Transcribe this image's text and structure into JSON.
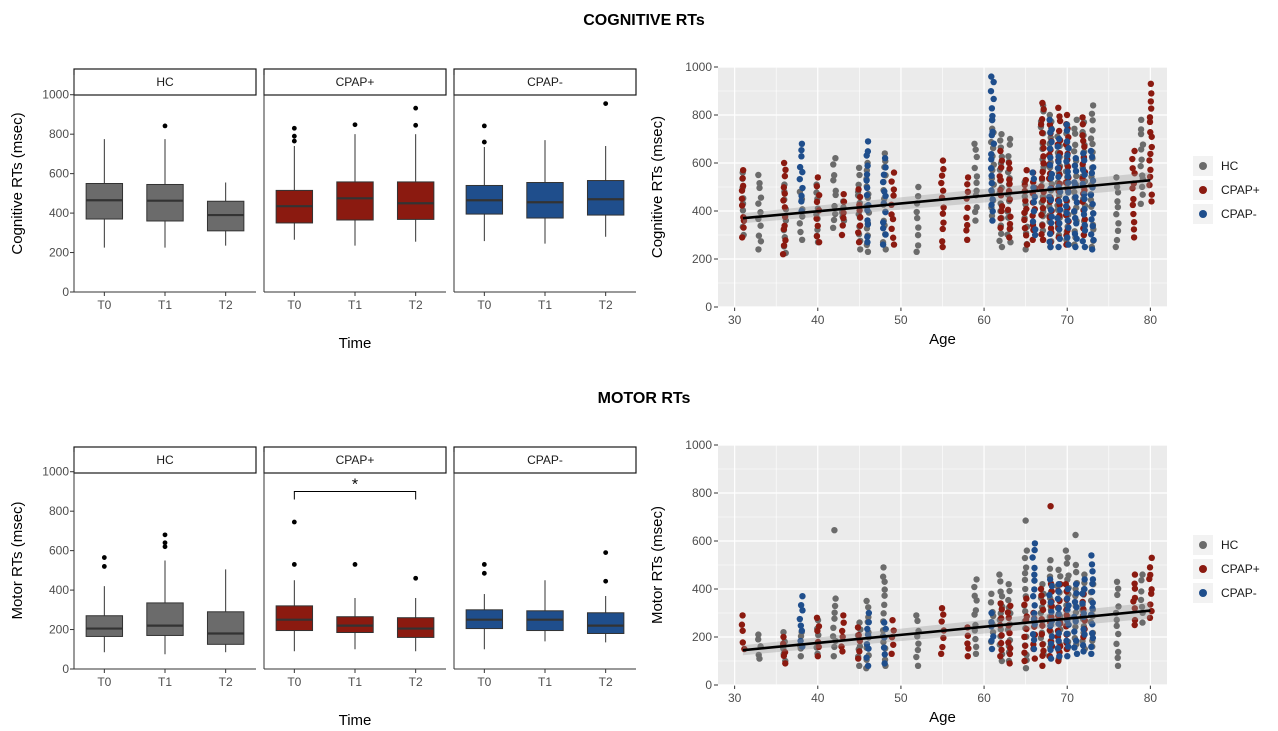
{
  "colors": {
    "HC": "#6b6b6b",
    "CPAP+": "#8b1a10",
    "CPAP-": "#1f4e8c",
    "panel_bg": "#ebebeb",
    "grid": "#ffffff",
    "trend": "#000000"
  },
  "legend": [
    "HC",
    "CPAP+",
    "CPAP-"
  ],
  "sections": [
    {
      "title": "COGNITIVE RTs"
    },
    {
      "title": "MOTOR RTs"
    }
  ],
  "chart_data": [
    {
      "type": "box",
      "section": "COGNITIVE RTs",
      "facets": [
        "HC",
        "CPAP+",
        "CPAP-"
      ],
      "categories": [
        "T0",
        "T1",
        "T2"
      ],
      "xlabel": "Time",
      "ylabel": "Cognitive RTs (msec)",
      "ylim": [
        0,
        1100
      ],
      "yticks": [
        0,
        200,
        400,
        600,
        800,
        1000
      ],
      "boxes": [
        [
          {
            "q1": 370,
            "median": 465,
            "q3": 550,
            "lower": 225,
            "upper": 775,
            "outliers": []
          },
          {
            "q1": 360,
            "median": 463,
            "q3": 545,
            "lower": 225,
            "upper": 775,
            "outliers": [
              842
            ]
          },
          {
            "q1": 310,
            "median": 390,
            "q3": 460,
            "lower": 235,
            "upper": 555,
            "outliers": []
          }
        ],
        [
          {
            "q1": 350,
            "median": 435,
            "q3": 515,
            "lower": 265,
            "upper": 740,
            "outliers": [
              765,
              790,
              830
            ]
          },
          {
            "q1": 365,
            "median": 475,
            "q3": 558,
            "lower": 235,
            "upper": 800,
            "outliers": [
              848
            ]
          },
          {
            "q1": 368,
            "median": 450,
            "q3": 558,
            "lower": 255,
            "upper": 800,
            "outliers": [
              845,
              932
            ]
          }
        ],
        [
          {
            "q1": 395,
            "median": 465,
            "q3": 540,
            "lower": 258,
            "upper": 735,
            "outliers": [
              760,
              842
            ]
          },
          {
            "q1": 375,
            "median": 455,
            "q3": 555,
            "lower": 245,
            "upper": 770,
            "outliers": []
          },
          {
            "q1": 390,
            "median": 470,
            "q3": 565,
            "lower": 280,
            "upper": 740,
            "outliers": [
              955
            ]
          }
        ]
      ]
    },
    {
      "type": "scatter",
      "section": "COGNITIVE RTs",
      "xlabel": "Age",
      "ylabel": "Cognitive RTs (msec)",
      "xlim": [
        28,
        82
      ],
      "ylim": [
        0,
        1000
      ],
      "xticks": [
        30,
        40,
        50,
        60,
        70,
        80
      ],
      "yticks": [
        0,
        200,
        400,
        600,
        800,
        1000
      ],
      "trend": {
        "x": [
          31,
          80
        ],
        "y": [
          370,
          528
        ]
      },
      "clusters": [
        {
          "x": 31,
          "HC": [
            300,
            560
          ],
          "CPAP+": [
            290,
            570
          ]
        },
        {
          "x": 33,
          "HC": [
            240,
            550
          ]
        },
        {
          "x": 36,
          "HC": [
            225,
            510
          ],
          "CPAP+": [
            220,
            600
          ]
        },
        {
          "x": 38,
          "HC": [
            280,
            480
          ],
          "CPAP-": [
            400,
            680
          ]
        },
        {
          "x": 40,
          "HC": [
            270,
            510
          ],
          "CPAP+": [
            270,
            540
          ]
        },
        {
          "x": 42,
          "HC": [
            330,
            620
          ]
        },
        {
          "x": 43,
          "HC": [
            360,
            440
          ],
          "CPAP+": [
            300,
            470
          ]
        },
        {
          "x": 45,
          "HC": [
            240,
            580
          ],
          "CPAP+": [
            270,
            490
          ]
        },
        {
          "x": 46,
          "HC": [
            230,
            600
          ],
          "CPAP-": [
            270,
            690
          ]
        },
        {
          "x": 48,
          "HC": [
            240,
            640
          ],
          "CPAP-": [
            260,
            620
          ]
        },
        {
          "x": 49,
          "CPAP+": [
            260,
            560
          ]
        },
        {
          "x": 52,
          "HC": [
            230,
            500
          ]
        },
        {
          "x": 55,
          "CPAP+": [
            250,
            610
          ]
        },
        {
          "x": 58,
          "CPAP+": [
            280,
            540
          ]
        },
        {
          "x": 59,
          "HC": [
            360,
            680
          ]
        },
        {
          "x": 61,
          "HC": [
            380,
            780
          ],
          "CPAP-": [
            360,
            960
          ]
        },
        {
          "x": 62,
          "HC": [
            250,
            720
          ],
          "CPAP+": [
            330,
            650
          ]
        },
        {
          "x": 63,
          "HC": [
            270,
            700
          ],
          "CPAP+": [
            290,
            600
          ]
        },
        {
          "x": 65,
          "HC": [
            240,
            520
          ],
          "CPAP+": [
            260,
            570
          ]
        },
        {
          "x": 66,
          "CPAP+": [
            280,
            560
          ],
          "CPAP-": [
            300,
            560
          ]
        },
        {
          "x": 67,
          "HC": [
            280,
            840
          ],
          "CPAP+": [
            280,
            850
          ]
        },
        {
          "x": 68,
          "HC": [
            250,
            800
          ],
          "CPAP+": [
            270,
            760
          ],
          "CPAP-": [
            250,
            780
          ]
        },
        {
          "x": 69,
          "HC": [
            300,
            710
          ],
          "CPAP+": [
            290,
            830
          ],
          "CPAP-": [
            250,
            700
          ]
        },
        {
          "x": 70,
          "HC": [
            280,
            760
          ],
          "CPAP+": [
            260,
            800
          ],
          "CPAP-": [
            260,
            760
          ]
        },
        {
          "x": 71,
          "HC": [
            260,
            780
          ],
          "CPAP-": [
            250,
            620
          ]
        },
        {
          "x": 72,
          "HC": [
            300,
            770
          ],
          "CPAP+": [
            300,
            790
          ],
          "CPAP-": [
            250,
            640
          ]
        },
        {
          "x": 73,
          "HC": [
            250,
            840
          ],
          "CPAP-": [
            240,
            650
          ]
        },
        {
          "x": 76,
          "HC": [
            250,
            540
          ]
        },
        {
          "x": 78,
          "CPAP+": [
            290,
            650
          ]
        },
        {
          "x": 79,
          "HC": [
            430,
            780
          ]
        },
        {
          "x": 80,
          "CPAP+": [
            440,
            930
          ]
        }
      ]
    },
    {
      "type": "box",
      "section": "MOTOR RTs",
      "facets": [
        "HC",
        "CPAP+",
        "CPAP-"
      ],
      "categories": [
        "T0",
        "T1",
        "T2"
      ],
      "xlabel": "Time",
      "ylabel": "Motor RTs (msec)",
      "ylim": [
        0,
        1100
      ],
      "yticks": [
        0,
        200,
        400,
        600,
        800,
        1000
      ],
      "significance": {
        "facet": "CPAP+",
        "from": "T0",
        "to": "T2",
        "label": "*",
        "y": 900
      },
      "boxes": [
        [
          {
            "q1": 165,
            "median": 205,
            "q3": 270,
            "lower": 85,
            "upper": 420,
            "outliers": [
              520,
              565
            ]
          },
          {
            "q1": 170,
            "median": 220,
            "q3": 335,
            "lower": 75,
            "upper": 550,
            "outliers": [
              620,
              640,
              680
            ]
          },
          {
            "q1": 125,
            "median": 180,
            "q3": 290,
            "lower": 85,
            "upper": 505,
            "outliers": []
          }
        ],
        [
          {
            "q1": 195,
            "median": 250,
            "q3": 320,
            "lower": 90,
            "upper": 450,
            "outliers": [
              530,
              745
            ]
          },
          {
            "q1": 185,
            "median": 220,
            "q3": 265,
            "lower": 100,
            "upper": 360,
            "outliers": [
              530
            ]
          },
          {
            "q1": 160,
            "median": 205,
            "q3": 260,
            "lower": 90,
            "upper": 360,
            "outliers": [
              460
            ]
          }
        ],
        [
          {
            "q1": 205,
            "median": 250,
            "q3": 300,
            "lower": 100,
            "upper": 380,
            "outliers": [
              485,
              530
            ]
          },
          {
            "q1": 195,
            "median": 250,
            "q3": 295,
            "lower": 140,
            "upper": 450,
            "outliers": []
          },
          {
            "q1": 180,
            "median": 220,
            "q3": 285,
            "lower": 135,
            "upper": 370,
            "outliers": [
              445,
              590
            ]
          }
        ]
      ]
    },
    {
      "type": "scatter",
      "section": "MOTOR RTs",
      "xlabel": "Age",
      "ylabel": "Motor RTs (msec)",
      "xlim": [
        28,
        82
      ],
      "ylim": [
        0,
        1000
      ],
      "xticks": [
        30,
        40,
        50,
        60,
        70,
        80
      ],
      "yticks": [
        0,
        200,
        400,
        600,
        800,
        1000
      ],
      "trend": {
        "x": [
          31,
          80
        ],
        "y": [
          145,
          310
        ]
      },
      "clusters": [
        {
          "x": 31,
          "CPAP+": [
            150,
            290
          ]
        },
        {
          "x": 33,
          "HC": [
            110,
            210
          ]
        },
        {
          "x": 36,
          "HC": [
            100,
            220
          ],
          "CPAP+": [
            90,
            200
          ]
        },
        {
          "x": 38,
          "HC": [
            120,
            220
          ],
          "CPAP-": [
            160,
            370
          ]
        },
        {
          "x": 40,
          "HC": [
            130,
            270
          ],
          "CPAP+": [
            120,
            280
          ]
        },
        {
          "x": 42,
          "HC": [
            120,
            360
          ]
        },
        {
          "x": 43,
          "CPAP+": [
            140,
            290
          ]
        },
        {
          "x": 45,
          "HC": [
            80,
            260
          ],
          "CPAP+": [
            110,
            240
          ]
        },
        {
          "x": 46,
          "HC": [
            70,
            350
          ],
          "CPAP-": [
            80,
            300
          ]
        },
        {
          "x": 48,
          "HC": [
            80,
            490
          ],
          "CPAP-": [
            90,
            260
          ]
        },
        {
          "x": 49,
          "CPAP+": [
            130,
            270
          ]
        },
        {
          "x": 52,
          "HC": [
            80,
            290
          ]
        },
        {
          "x": 55,
          "CPAP+": [
            130,
            320
          ]
        },
        {
          "x": 58,
          "CPAP+": [
            120,
            240
          ]
        },
        {
          "x": 59,
          "HC": [
            130,
            440
          ]
        },
        {
          "x": 61,
          "HC": [
            180,
            380
          ],
          "CPAP-": [
            150,
            300
          ]
        },
        {
          "x": 62,
          "HC": [
            100,
            460
          ],
          "CPAP+": [
            120,
            340
          ]
        },
        {
          "x": 63,
          "HC": [
            100,
            420
          ],
          "CPAP+": [
            90,
            330
          ]
        },
        {
          "x": 65,
          "HC": [
            70,
            560
          ],
          "CPAP+": [
            100,
            360
          ]
        },
        {
          "x": 66,
          "CPAP+": [
            110,
            300
          ],
          "CPAP-": [
            150,
            590
          ]
        },
        {
          "x": 67,
          "HC": [
            130,
            420
          ],
          "CPAP+": [
            80,
            400
          ]
        },
        {
          "x": 68,
          "HC": [
            120,
            520
          ],
          "CPAP+": [
            120,
            420
          ],
          "CPAP-": [
            110,
            440
          ]
        },
        {
          "x": 69,
          "HC": [
            110,
            480
          ],
          "CPAP+": [
            100,
            420
          ],
          "CPAP-": [
            120,
            420
          ]
        },
        {
          "x": 70,
          "HC": [
            150,
            560
          ],
          "CPAP+": [
            150,
            420
          ],
          "CPAP-": [
            120,
            400
          ]
        },
        {
          "x": 71,
          "HC": [
            170,
            500
          ],
          "CPAP-": [
            130,
            420
          ]
        },
        {
          "x": 72,
          "HC": [
            150,
            460
          ],
          "CPAP+": [
            200,
            380
          ],
          "CPAP-": [
            140,
            440
          ]
        },
        {
          "x": 73,
          "HC": [
            160,
            420
          ],
          "CPAP-": [
            130,
            540
          ]
        },
        {
          "x": 76,
          "HC": [
            80,
            430
          ]
        },
        {
          "x": 78,
          "CPAP+": [
            250,
            460
          ]
        },
        {
          "x": 79,
          "HC": [
            260,
            460
          ]
        },
        {
          "x": 80,
          "CPAP+": [
            280,
            530
          ]
        }
      ],
      "extra_points": [
        {
          "x": 42,
          "y": 645,
          "group": "HC"
        },
        {
          "x": 65,
          "y": 685,
          "group": "HC"
        },
        {
          "x": 68,
          "y": 745,
          "group": "CPAP+"
        },
        {
          "x": 71,
          "y": 625,
          "group": "HC"
        }
      ]
    }
  ]
}
